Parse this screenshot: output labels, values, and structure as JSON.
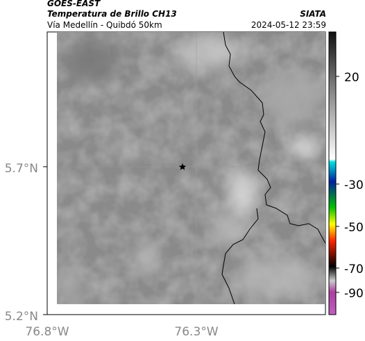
{
  "header": {
    "source": "GOES-EAST",
    "title": "Temperatura de Brillo CH13",
    "credit": "SIATA",
    "subtitle": "Vía Medellín - Quibdó 50km",
    "datetime": "2024-05-12 23:59"
  },
  "map": {
    "lat_ticks": [
      "5.7°N",
      "5.2°N"
    ],
    "lon_ticks": [
      "76.8°W",
      "76.3°W"
    ]
  },
  "colorbar": {
    "ticks": [
      "20",
      "-30",
      "-50",
      "-70",
      "-90"
    ]
  }
}
